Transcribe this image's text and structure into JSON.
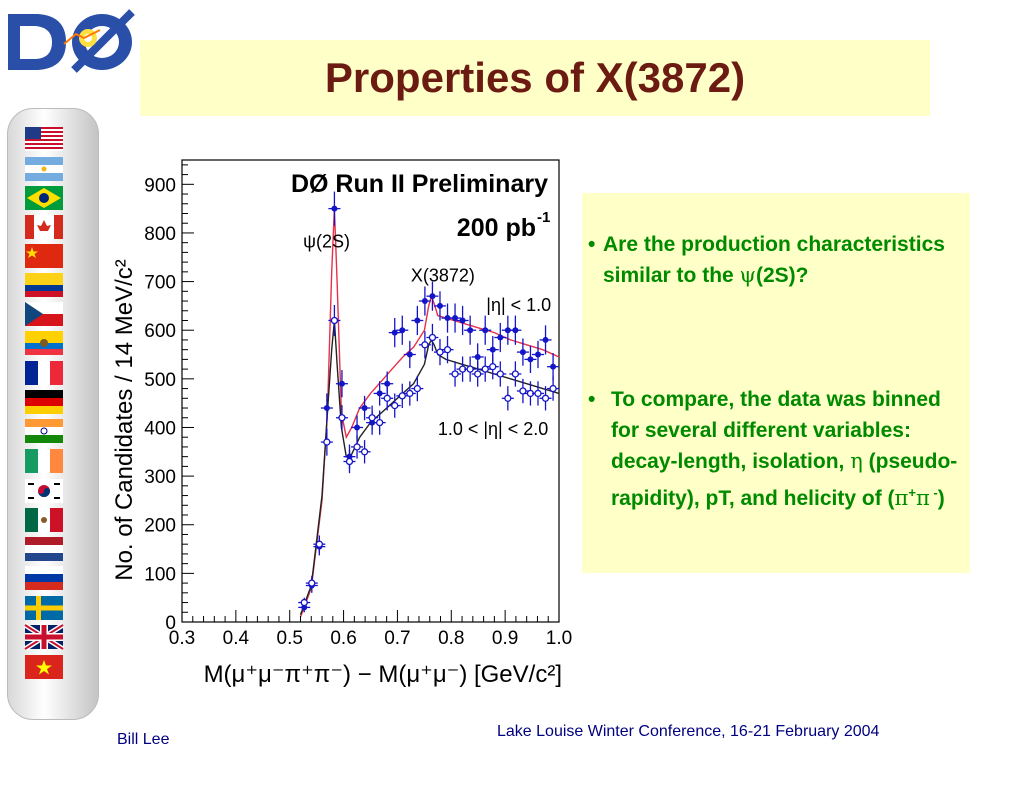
{
  "slide": {
    "title": "Properties of X(3872)",
    "logo_text": "DØ"
  },
  "flags": [
    "usa-flag",
    "argentina-flag",
    "brazil-flag",
    "canada-flag",
    "china-flag",
    "colombia-flag",
    "czech-flag",
    "ecuador-flag",
    "france-flag",
    "germany-flag",
    "india-flag",
    "ireland-flag",
    "korea-flag",
    "mexico-flag",
    "netherlands-flag",
    "russia-flag",
    "sweden-flag",
    "uk-flag",
    "vietnam-flag"
  ],
  "chart_data": {
    "type": "scatter",
    "title": "DØ Run II Preliminary",
    "subtitle": "200 pb",
    "subtitle_sup": "-1",
    "xlabel": "M(μ⁺μ⁻π⁺π⁻) − M(μ⁺μ⁻) [GeV/c²]",
    "ylabel": "No. of Candidates / 14 MeV/c²",
    "xlim": [
      0.3,
      1.0
    ],
    "ylim": [
      0,
      950
    ],
    "x_ticks": [
      "0.3",
      "0.4",
      "0.5",
      "0.6",
      "0.7",
      "0.8",
      "0.9",
      "1.0"
    ],
    "y_ticks": [
      "0",
      "100",
      "200",
      "300",
      "400",
      "500",
      "600",
      "700",
      "800",
      "900"
    ],
    "annotations": [
      {
        "text": "ψ(2S)",
        "x": 0.525,
        "y": 770
      },
      {
        "text": "X(3872)",
        "x": 0.725,
        "y": 700
      },
      {
        "text": "|η| < 1.0",
        "x": 0.865,
        "y": 640
      },
      {
        "text": "1.0 < |η| < 2.0",
        "x": 0.775,
        "y": 385
      }
    ],
    "series": [
      {
        "name": "|η| < 1.0",
        "marker": "filled",
        "color": "#1515c8",
        "x": [
          0.527,
          0.541,
          0.555,
          0.569,
          0.583,
          0.597,
          0.611,
          0.625,
          0.639,
          0.653,
          0.667,
          0.681,
          0.695,
          0.709,
          0.723,
          0.737,
          0.751,
          0.765,
          0.779,
          0.793,
          0.807,
          0.821,
          0.835,
          0.849,
          0.863,
          0.877,
          0.891,
          0.905,
          0.919,
          0.933,
          0.947,
          0.961,
          0.975,
          0.989
        ],
        "values": [
          30,
          75,
          155,
          440,
          850,
          490,
          340,
          400,
          440,
          410,
          470,
          490,
          595,
          600,
          550,
          620,
          660,
          670,
          650,
          625,
          625,
          620,
          600,
          545,
          600,
          560,
          585,
          600,
          600,
          555,
          540,
          550,
          580,
          525
        ],
        "errors": [
          10,
          15,
          18,
          30,
          35,
          28,
          25,
          25,
          25,
          25,
          25,
          25,
          30,
          30,
          28,
          30,
          30,
          30,
          30,
          30,
          30,
          30,
          30,
          28,
          30,
          28,
          30,
          30,
          30,
          28,
          28,
          28,
          30,
          28
        ]
      },
      {
        "name": "1.0 < |η| < 2.0",
        "marker": "open",
        "color": "#1515c8",
        "x": [
          0.527,
          0.541,
          0.555,
          0.569,
          0.583,
          0.597,
          0.611,
          0.625,
          0.639,
          0.653,
          0.667,
          0.681,
          0.695,
          0.709,
          0.723,
          0.737,
          0.751,
          0.765,
          0.779,
          0.793,
          0.807,
          0.821,
          0.835,
          0.849,
          0.863,
          0.877,
          0.891,
          0.905,
          0.919,
          0.933,
          0.947,
          0.961,
          0.975,
          0.989
        ],
        "values": [
          40,
          80,
          160,
          370,
          620,
          420,
          330,
          360,
          350,
          420,
          410,
          460,
          445,
          465,
          470,
          480,
          570,
          585,
          555,
          560,
          510,
          520,
          520,
          510,
          520,
          525,
          510,
          460,
          510,
          475,
          470,
          470,
          460,
          480
        ],
        "errors": [
          10,
          15,
          18,
          28,
          32,
          26,
          24,
          24,
          24,
          25,
          25,
          25,
          25,
          25,
          25,
          26,
          28,
          28,
          27,
          28,
          26,
          26,
          26,
          26,
          26,
          26,
          26,
          25,
          26,
          25,
          25,
          25,
          25,
          25
        ]
      }
    ],
    "fits": [
      {
        "name": "|η| < 1.0",
        "color": "#e8304a",
        "x": [
          0.52,
          0.54,
          0.56,
          0.57,
          0.578,
          0.583,
          0.588,
          0.596,
          0.605,
          0.615,
          0.63,
          0.65,
          0.67,
          0.69,
          0.71,
          0.73,
          0.75,
          0.758,
          0.763,
          0.768,
          0.775,
          0.79,
          0.82,
          0.85,
          0.88,
          0.91,
          0.94,
          0.97,
          1.0
        ],
        "values": [
          10,
          70,
          250,
          430,
          720,
          850,
          700,
          430,
          380,
          400,
          440,
          470,
          495,
          520,
          545,
          565,
          600,
          650,
          670,
          655,
          630,
          625,
          615,
          605,
          595,
          580,
          570,
          560,
          545
        ]
      },
      {
        "name": "1.0 < |η| < 2.0",
        "color": "#222222",
        "x": [
          0.52,
          0.54,
          0.56,
          0.57,
          0.578,
          0.583,
          0.588,
          0.596,
          0.605,
          0.615,
          0.63,
          0.65,
          0.67,
          0.69,
          0.71,
          0.73,
          0.75,
          0.758,
          0.763,
          0.768,
          0.775,
          0.79,
          0.82,
          0.85,
          0.88,
          0.91,
          0.94,
          0.97,
          1.0
        ],
        "values": [
          15,
          75,
          260,
          430,
          560,
          620,
          530,
          400,
          340,
          345,
          380,
          410,
          430,
          450,
          470,
          490,
          530,
          570,
          580,
          570,
          550,
          540,
          530,
          520,
          510,
          500,
          490,
          480,
          470
        ]
      }
    ],
    "grid": false
  },
  "bullets": [
    {
      "prefix": "Are the production characteristics similar to the ",
      "greek": "ψ",
      "suffix": "(2S)?"
    },
    {
      "part1": "To compare, the data was binned for several different variables: decay-length, isolation, ",
      "eta": "η",
      "part2": " (pseudo-rapidity), pT,  and helicity of (",
      "pi1": "π",
      "pi1_sup": "+",
      "pi2": "π",
      "pi2_sup": " -",
      "part3": ")"
    }
  ],
  "footer": {
    "author": "Bill Lee",
    "conference": "Lake Louise Winter Conference, 16-21 February 2004"
  }
}
